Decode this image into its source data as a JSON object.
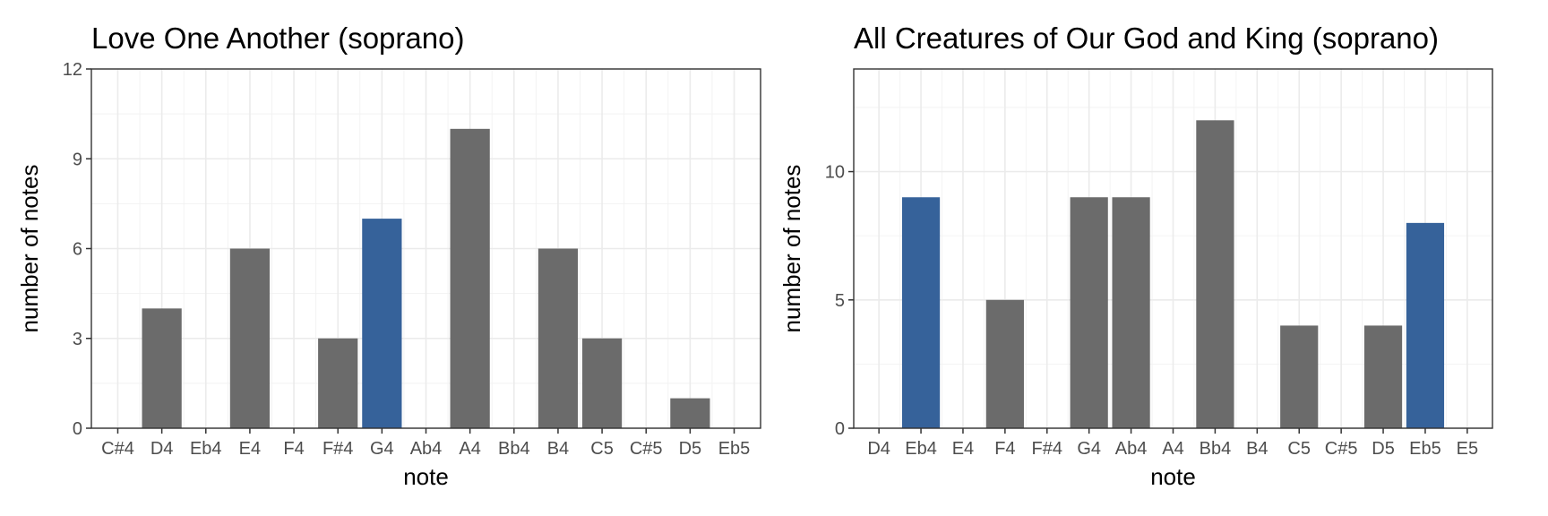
{
  "colors": {
    "bar_default": "#6b6b6b",
    "bar_highlight": "#36629a"
  },
  "chart_data": [
    {
      "type": "bar",
      "title": "Love One Another (soprano)",
      "xlabel": "note",
      "ylabel": "number of notes",
      "categories": [
        "C#4",
        "D4",
        "Eb4",
        "E4",
        "F4",
        "F#4",
        "G4",
        "Ab4",
        "A4",
        "Bb4",
        "B4",
        "C5",
        "C#5",
        "D5",
        "Eb5"
      ],
      "values": [
        0,
        4,
        0,
        6,
        0,
        3,
        7,
        0,
        10,
        0,
        6,
        3,
        0,
        1,
        0
      ],
      "highlighted": [
        "G4"
      ],
      "yticks": [
        0,
        3,
        6,
        9,
        12
      ],
      "ylim": [
        0,
        12
      ],
      "grid": true
    },
    {
      "type": "bar",
      "title": "All Creatures of Our God and King (soprano)",
      "xlabel": "note",
      "ylabel": "number of notes",
      "categories": [
        "D4",
        "Eb4",
        "E4",
        "F4",
        "F#4",
        "G4",
        "Ab4",
        "A4",
        "Bb4",
        "B4",
        "C5",
        "C#5",
        "D5",
        "Eb5",
        "E5"
      ],
      "values": [
        0,
        9,
        0,
        5,
        0,
        9,
        9,
        0,
        12,
        0,
        4,
        0,
        4,
        8,
        0
      ],
      "highlighted": [
        "Eb4",
        "Eb5"
      ],
      "yticks": [
        0,
        5,
        10
      ],
      "ylim": [
        0,
        14
      ],
      "grid": true
    }
  ]
}
